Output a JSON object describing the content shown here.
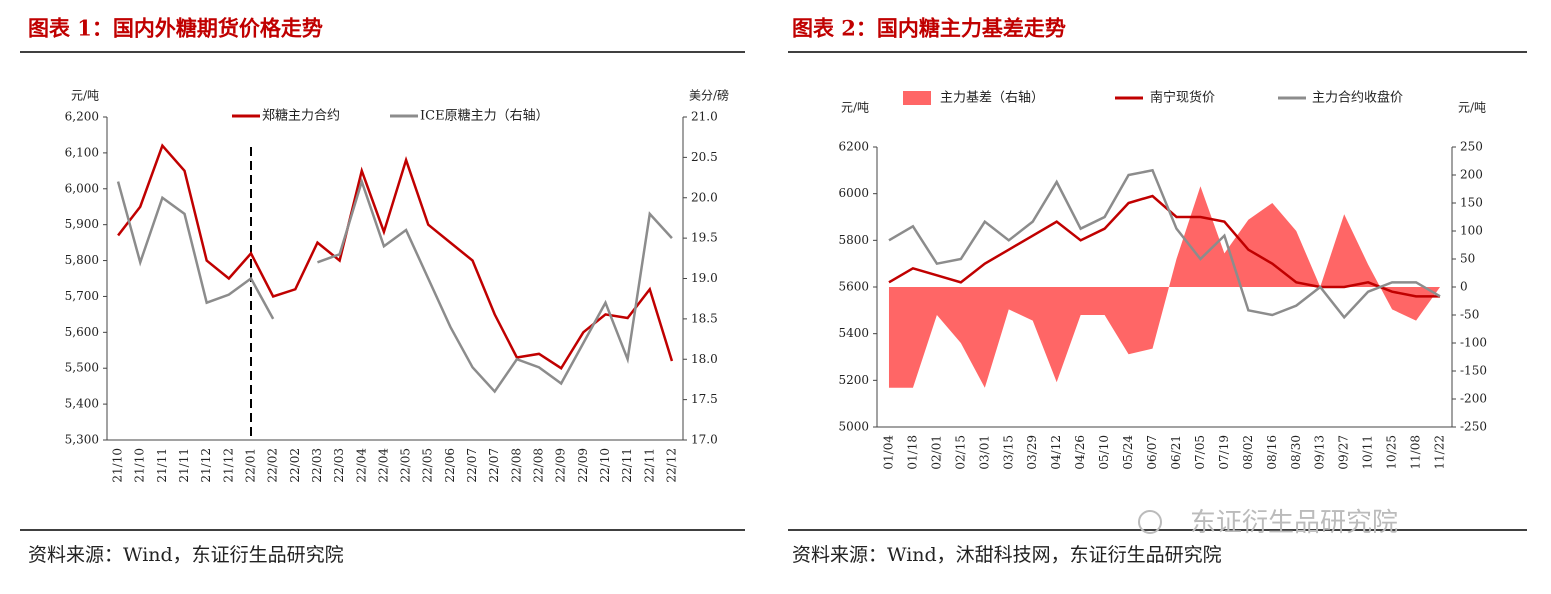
{
  "chart_data": [
    {
      "type": "line",
      "title": "图表 1：国内外糖期货价格走势",
      "y_unit": "元/吨",
      "y2_unit": "美分/磅",
      "source": "资料来源：Wind，东证衍生品研究院",
      "categories": [
        "21/10",
        "21/10",
        "21/11",
        "21/11",
        "21/12",
        "21/12",
        "22/01",
        "22/02",
        "22/02",
        "22/03",
        "22/03",
        "22/04",
        "22/04",
        "22/05",
        "22/05",
        "22/06",
        "22/07",
        "22/07",
        "22/08",
        "22/08",
        "22/09",
        "22/09",
        "22/10",
        "22/11",
        "22/11",
        "22/12"
      ],
      "series": [
        {
          "name": "郑糖主力合约",
          "color": "#c00000",
          "values": [
            5870,
            5950,
            6120,
            6050,
            5800,
            5750,
            5820,
            5700,
            5720,
            5850,
            5800,
            6050,
            5880,
            6080,
            5900,
            5850,
            5800,
            5650,
            5530,
            5540,
            5500,
            5600,
            5650,
            5640,
            5720,
            5520
          ]
        },
        {
          "name": "ICE原糖主力（右轴）",
          "color": "#8c8c8c",
          "axis": "y2",
          "values": [
            20.2,
            19.2,
            20.0,
            19.8,
            18.7,
            18.8,
            19.0,
            18.5,
            null,
            19.2,
            19.3,
            20.2,
            19.4,
            19.6,
            19.0,
            18.4,
            17.9,
            17.6,
            18.0,
            17.9,
            17.7,
            18.2,
            18.7,
            18.0,
            19.8,
            19.5
          ]
        }
      ],
      "ylim": [
        5300,
        6200
      ],
      "yticks": [
        {
          "value": 5300,
          "label": "5,300"
        },
        {
          "value": 5400,
          "label": "5,400"
        },
        {
          "value": 5500,
          "label": "5,500"
        },
        {
          "value": 5600,
          "label": "5,600"
        },
        {
          "value": 5700,
          "label": "5,700"
        },
        {
          "value": 5800,
          "label": "5,800"
        },
        {
          "value": 5900,
          "label": "5,900"
        },
        {
          "value": 6000,
          "label": "6,000"
        },
        {
          "value": 6100,
          "label": "6,100"
        },
        {
          "value": 6200,
          "label": "6,200"
        }
      ],
      "y2lim": [
        17,
        21
      ],
      "y2ticks": [
        {
          "value": 17,
          "label": "17.0"
        },
        {
          "value": 17.5,
          "label": "17.5"
        },
        {
          "value": 18,
          "label": "18.0"
        },
        {
          "value": 18.5,
          "label": "18.5"
        },
        {
          "value": 19,
          "label": "19.0"
        },
        {
          "value": 19.5,
          "label": "19.5"
        },
        {
          "value": 20,
          "label": "20.0"
        },
        {
          "value": 20.5,
          "label": "20.5"
        },
        {
          "value": 21,
          "label": "21.0"
        }
      ]
    },
    {
      "type": "combo",
      "title": "图表 2：国内糖主力基差走势",
      "y_unit": "元/吨",
      "y2_unit": "元/吨",
      "source": "资料来源：Wind，沐甜科技网，东证衍生品研究院",
      "categories": [
        "01/04",
        "01/18",
        "02/01",
        "02/15",
        "03/01",
        "03/15",
        "03/29",
        "04/12",
        "04/26",
        "05/10",
        "05/24",
        "06/07",
        "06/21",
        "07/05",
        "07/19",
        "08/02",
        "08/16",
        "08/30",
        "09/13",
        "09/27",
        "10/11",
        "10/25",
        "11/08",
        "11/22"
      ],
      "series": [
        {
          "name": "主力基差（右轴）",
          "type": "area",
          "color": "#ff6666",
          "axis": "y2",
          "values": [
            -180,
            -180,
            -50,
            -100,
            -180,
            -40,
            -60,
            -170,
            -50,
            -50,
            -120,
            -110,
            50,
            180,
            60,
            120,
            150,
            100,
            0,
            130,
            40,
            -40,
            -60,
            0
          ]
        },
        {
          "name": "南宁现货价",
          "type": "line",
          "color": "#c00000",
          "values": [
            5620,
            5680,
            5650,
            5620,
            5700,
            5760,
            5820,
            5880,
            5800,
            5850,
            5960,
            5990,
            5900,
            5900,
            5880,
            5760,
            5700,
            5620,
            5600,
            5600,
            5620,
            5580,
            5560,
            5560
          ]
        },
        {
          "name": "主力合约收盘价",
          "type": "line",
          "color": "#8c8c8c",
          "values": [
            5800,
            5860,
            5700,
            5720,
            5880,
            5800,
            5880,
            6050,
            5850,
            5900,
            6080,
            6100,
            5850,
            5720,
            5820,
            5500,
            5480,
            5520,
            5600,
            5470,
            5580,
            5620,
            5620,
            5560
          ]
        }
      ],
      "ylim": [
        5000,
        6200
      ],
      "yticks": [
        5000,
        5200,
        5400,
        5600,
        5800,
        6000,
        6200
      ],
      "y2lim": [
        -250,
        250
      ],
      "y2ticks": [
        -250,
        -200,
        -150,
        -100,
        -50,
        0,
        50,
        100,
        150,
        200,
        250
      ]
    }
  ],
  "watermark": "东证衍生品研究院"
}
